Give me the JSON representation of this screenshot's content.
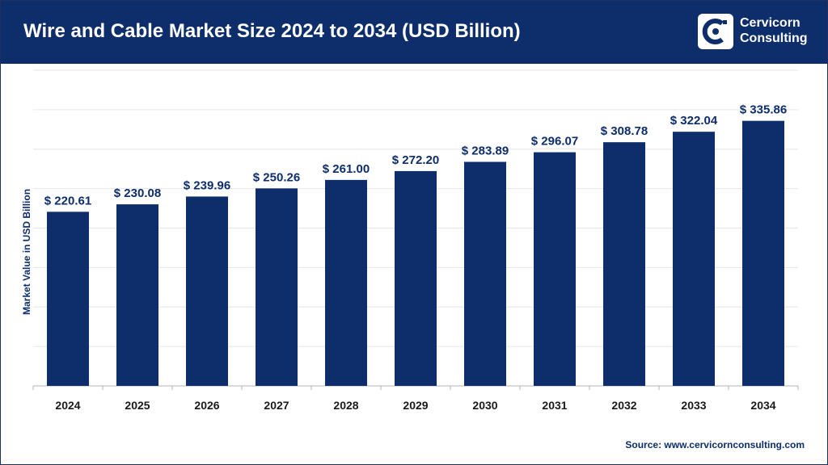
{
  "header": {
    "title": "Wire and Cable Market Size 2024 to 2034 (USD Billion)",
    "brand_line1": "Cervicorn",
    "brand_line2": "Consulting"
  },
  "colors": {
    "bar": "#0d2d6b",
    "header_bg": "#0d2d6b",
    "grid": "#e6e6e6",
    "axis": "#b3b3b3"
  },
  "source": "Source: www.cervicornconsulting.com",
  "chart_data": {
    "type": "bar",
    "categories": [
      "2024",
      "2025",
      "2026",
      "2027",
      "2028",
      "2029",
      "2030",
      "2031",
      "2032",
      "2033",
      "2034"
    ],
    "values": [
      220.61,
      230.08,
      239.96,
      250.26,
      261.0,
      272.2,
      283.89,
      296.07,
      308.78,
      322.04,
      335.86
    ],
    "data_labels": [
      "$ 220.61",
      "$ 230.08",
      "$ 239.96",
      "$ 250.26",
      "$ 261.00",
      "$ 272.20",
      "$ 283.89",
      "$ 296.07",
      "$ 308.78",
      "$ 322.04",
      "$ 335.86"
    ],
    "title": "Wire and Cable Market Size 2024 to 2034 (USD Billion)",
    "xlabel": "",
    "ylabel": "Market Value in USD Billion",
    "ylim": [
      0,
      400
    ],
    "grid": true,
    "legend": "none"
  }
}
